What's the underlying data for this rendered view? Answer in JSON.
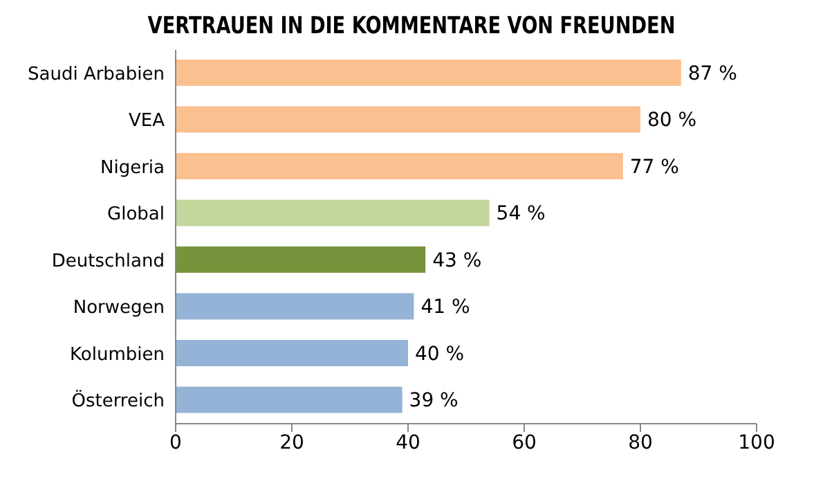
{
  "chart_data": {
    "type": "bar",
    "orientation": "horizontal",
    "title": "VERTRAUEN IN DIE KOMMENTARE VON FREUNDEN",
    "categories": [
      "Saudi Arbabien",
      "VEA",
      "Nigeria",
      "Global",
      "Deutschland",
      "Norwegen",
      "Kolumbien",
      "Österreich"
    ],
    "values": [
      87,
      80,
      77,
      54,
      43,
      41,
      40,
      39
    ],
    "colors": [
      "#fac090",
      "#fac090",
      "#fac090",
      "#c3d69b",
      "#77933c",
      "#95b3d7",
      "#95b3d7",
      "#95b3d7"
    ],
    "value_labels": [
      "87 %",
      "80 %",
      "77 %",
      "54 %",
      "43 %",
      "41 %",
      "40 %",
      "39 %"
    ],
    "xlim": [
      0,
      100
    ],
    "xticks": [
      0,
      20,
      40,
      60,
      80,
      100
    ],
    "grid": false
  }
}
